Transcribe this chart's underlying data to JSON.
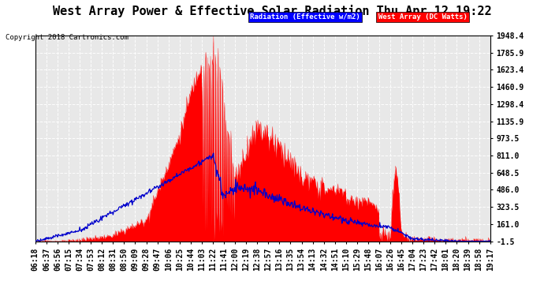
{
  "title": "West Array Power & Effective Solar Radiation Thu Apr 12 19:22",
  "copyright": "Copyright 2018 Cartronics.com",
  "legend_blue": "Radiation (Effective w/m2)",
  "legend_red": "West Array (DC Watts)",
  "yticks": [
    -1.5,
    161.0,
    323.5,
    486.0,
    648.5,
    811.0,
    973.5,
    1135.9,
    1298.4,
    1460.9,
    1623.4,
    1785.9,
    1948.4
  ],
  "ymin": -1.5,
  "ymax": 1948.4,
  "bg_color": "#ffffff",
  "plot_bg_color": "#e8e8e8",
  "grid_color": "#aaaaaa",
  "red_color": "#ff0000",
  "blue_color": "#0000cc",
  "title_fontsize": 11,
  "tick_fontsize": 7,
  "x_tick_labels": [
    "06:18",
    "06:37",
    "06:56",
    "07:15",
    "07:34",
    "07:53",
    "08:12",
    "08:31",
    "08:50",
    "09:09",
    "09:28",
    "09:47",
    "10:06",
    "10:25",
    "10:44",
    "11:03",
    "11:22",
    "11:41",
    "12:00",
    "12:19",
    "12:38",
    "12:57",
    "13:16",
    "13:35",
    "13:54",
    "14:13",
    "14:32",
    "14:51",
    "15:10",
    "15:29",
    "15:48",
    "16:07",
    "16:26",
    "16:45",
    "17:04",
    "17:23",
    "17:42",
    "18:01",
    "18:20",
    "18:39",
    "18:58",
    "19:17"
  ]
}
